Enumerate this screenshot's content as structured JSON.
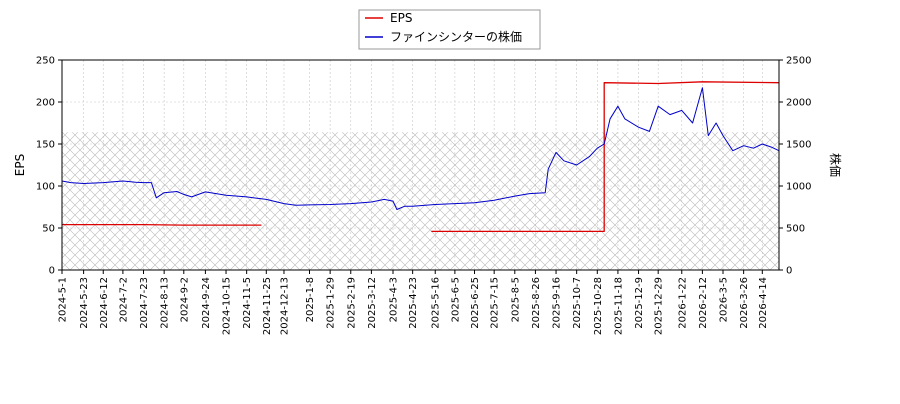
{
  "chart_data": {
    "type": "line",
    "legend": {
      "placement": "top-center",
      "entries": [
        {
          "label": "EPS",
          "color": "#dd0000"
        },
        {
          "label": "ファインシンターの株価",
          "color": "#0000cc"
        }
      ]
    },
    "ylabel_left": "EPS",
    "ylabel_right": "株価",
    "ylim_left": [
      0,
      250
    ],
    "ylim_right": [
      0,
      2500
    ],
    "yticks_left": [
      "0",
      "50",
      "100",
      "150",
      "200",
      "250"
    ],
    "yticks_right": [
      "0",
      "500",
      "1000",
      "1500",
      "2000",
      "2500"
    ],
    "grid": true,
    "x_tick_labels": [
      "2024-5-1",
      "2024-5-23",
      "2024-6-12",
      "2024-7-2",
      "2024-7-23",
      "2024-8-13",
      "2024-9-2",
      "2024-9-24",
      "2024-10-15",
      "2024-11-5",
      "2024-11-25",
      "2024-12-13",
      "2025-1-8",
      "2025-1-29",
      "2025-2-19",
      "2025-3-12",
      "2025-4-3",
      "2025-4-23",
      "2025-5-16",
      "2025-6-5",
      "2025-6-25",
      "2025-7-15",
      "2025-8-5",
      "2025-8-26",
      "2025-9-16",
      "2025-10-7",
      "2025-10-28",
      "2025-11-18",
      "2025-12-9",
      "2025-12-29",
      "2026-1-22",
      "2026-2-12",
      "2026-3-5",
      "2026-3-26",
      "2026-4-14"
    ],
    "x_range": [
      "2024-05-01",
      "2026-05-01"
    ],
    "shaded_band": {
      "axis": "right",
      "y_range": [
        0,
        1640
      ],
      "pattern": "crosshatch"
    },
    "series": [
      {
        "name": "EPS",
        "axis": "left",
        "color": "#dd0000",
        "segments": [
          [
            [
              "2024-05-01",
              54.0
            ],
            [
              "2024-06-12",
              54.0
            ],
            [
              "2024-07-23",
              54.0
            ],
            [
              "2024-09-02",
              53.5
            ],
            [
              "2024-10-15",
              53.5
            ],
            [
              "2024-11-20",
              53.5
            ]
          ],
          [
            [
              "2025-05-12",
              46.0
            ],
            [
              "2025-08-26",
              46.0
            ],
            [
              "2025-10-28",
              46.0
            ],
            [
              "2025-11-04",
              46.0
            ],
            [
              "2025-11-04",
              223.0
            ],
            [
              "2025-12-29",
              222.0
            ],
            [
              "2026-02-12",
              224.0
            ],
            [
              "2026-05-01",
              223.0
            ]
          ]
        ]
      },
      {
        "name": "ファインシンターの株価",
        "axis": "right",
        "color": "#0000cc",
        "points": [
          [
            "2024-05-01",
            1060
          ],
          [
            "2024-05-10",
            1040
          ],
          [
            "2024-05-23",
            1030
          ],
          [
            "2024-06-12",
            1040
          ],
          [
            "2024-07-02",
            1060
          ],
          [
            "2024-07-15",
            1045
          ],
          [
            "2024-07-23",
            1040
          ],
          [
            "2024-07-31",
            1040
          ],
          [
            "2024-08-05",
            860
          ],
          [
            "2024-08-13",
            920
          ],
          [
            "2024-08-26",
            935
          ],
          [
            "2024-09-02",
            900
          ],
          [
            "2024-09-10",
            870
          ],
          [
            "2024-09-24",
            930
          ],
          [
            "2024-10-15",
            890
          ],
          [
            "2024-11-05",
            870
          ],
          [
            "2024-11-25",
            840
          ],
          [
            "2024-12-13",
            790
          ],
          [
            "2024-12-25",
            770
          ],
          [
            "2025-01-08",
            775
          ],
          [
            "2025-01-29",
            780
          ],
          [
            "2025-02-19",
            790
          ],
          [
            "2025-03-12",
            810
          ],
          [
            "2025-03-25",
            840
          ],
          [
            "2025-04-03",
            820
          ],
          [
            "2025-04-07",
            720
          ],
          [
            "2025-04-15",
            760
          ],
          [
            "2025-04-23",
            760
          ],
          [
            "2025-05-16",
            780
          ],
          [
            "2025-06-05",
            790
          ],
          [
            "2025-06-25",
            800
          ],
          [
            "2025-07-15",
            830
          ],
          [
            "2025-08-05",
            880
          ],
          [
            "2025-08-20",
            910
          ],
          [
            "2025-09-05",
            920
          ],
          [
            "2025-09-08",
            1200
          ],
          [
            "2025-09-16",
            1400
          ],
          [
            "2025-09-24",
            1300
          ],
          [
            "2025-10-07",
            1250
          ],
          [
            "2025-10-20",
            1350
          ],
          [
            "2025-10-28",
            1450
          ],
          [
            "2025-11-04",
            1500
          ],
          [
            "2025-11-10",
            1800
          ],
          [
            "2025-11-18",
            1950
          ],
          [
            "2025-11-25",
            1800
          ],
          [
            "2025-12-09",
            1700
          ],
          [
            "2025-12-20",
            1650
          ],
          [
            "2025-12-29",
            1950
          ],
          [
            "2026-01-10",
            1850
          ],
          [
            "2026-01-22",
            1900
          ],
          [
            "2026-02-02",
            1750
          ],
          [
            "2026-02-12",
            2170
          ],
          [
            "2026-02-18",
            1600
          ],
          [
            "2026-02-26",
            1750
          ],
          [
            "2026-03-05",
            1600
          ],
          [
            "2026-03-15",
            1420
          ],
          [
            "2026-03-26",
            1480
          ],
          [
            "2026-04-05",
            1450
          ],
          [
            "2026-04-14",
            1500
          ],
          [
            "2026-04-24",
            1460
          ],
          [
            "2026-05-01",
            1420
          ]
        ]
      }
    ]
  }
}
